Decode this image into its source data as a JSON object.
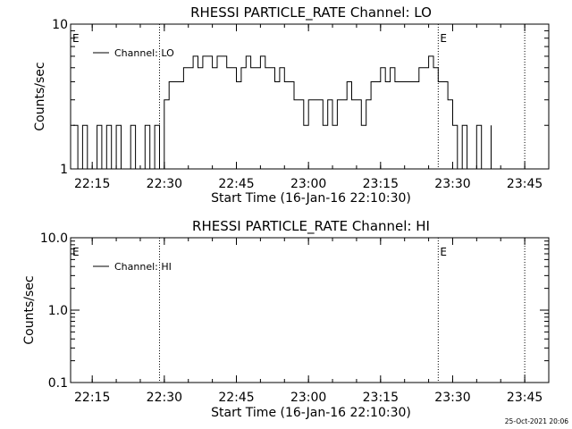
{
  "chart_data": [
    {
      "type": "line",
      "title": "RHESSI PARTICLE_RATE Channel: LO",
      "xlabel": "Start Time (16-Jan-16 22:10:30)",
      "ylabel": "Counts/sec",
      "y_scale": "log",
      "ylim": [
        1,
        10
      ],
      "xlim": [
        "22:10:30",
        "23:50"
      ],
      "x_ticks": [
        "22:15",
        "22:30",
        "22:45",
        "23:00",
        "23:15",
        "23:30",
        "23:45"
      ],
      "y_ticks": [
        "1",
        "10"
      ],
      "event_lines": [
        "22:29",
        "23:27",
        "23:45"
      ],
      "event_markers": [
        {
          "label": "E"
        },
        {
          "label": "E"
        }
      ],
      "legend": {
        "placement": "top-left",
        "entries": [
          "Channel: LO"
        ]
      },
      "series": [
        {
          "name": "Channel: LO",
          "x": [
            "22:11",
            "22:12",
            "22:13",
            "22:14",
            "22:15",
            "22:16",
            "22:17",
            "22:18",
            "22:19",
            "22:20",
            "22:21",
            "22:22",
            "22:23",
            "22:24",
            "22:25",
            "22:26",
            "22:27",
            "22:28",
            "22:29",
            "22:30",
            "22:31",
            "22:32",
            "22:33",
            "22:34",
            "22:35",
            "22:36",
            "22:37",
            "22:38",
            "22:39",
            "22:40",
            "22:41",
            "22:42",
            "22:43",
            "22:44",
            "22:45",
            "22:46",
            "22:47",
            "22:48",
            "22:49",
            "22:50",
            "22:51",
            "22:52",
            "22:53",
            "22:54",
            "22:55",
            "22:56",
            "22:57",
            "22:58",
            "22:59",
            "23:00",
            "23:01",
            "23:02",
            "23:03",
            "23:04",
            "23:05",
            "23:06",
            "23:07",
            "23:08",
            "23:09",
            "23:10",
            "23:11",
            "23:12",
            "23:13",
            "23:14",
            "23:15",
            "23:16",
            "23:17",
            "23:18",
            "23:19",
            "23:20",
            "23:21",
            "23:22",
            "23:23",
            "23:24",
            "23:25",
            "23:26",
            "23:27",
            "23:28",
            "23:29",
            "23:30",
            "23:31",
            "23:32",
            "23:33",
            "23:34",
            "23:35",
            "23:36",
            "23:37",
            "23:38"
          ],
          "values": [
            2,
            1,
            2,
            1,
            1,
            2,
            1,
            2,
            1,
            2,
            1,
            1,
            2,
            1,
            1,
            2,
            1,
            2,
            1,
            3,
            4,
            4,
            4,
            5,
            5,
            6,
            5,
            6,
            6,
            5,
            6,
            6,
            5,
            5,
            4,
            5,
            6,
            5,
            5,
            6,
            5,
            5,
            4,
            5,
            4,
            4,
            3,
            3,
            2,
            3,
            3,
            3,
            2,
            3,
            2,
            3,
            3,
            4,
            3,
            3,
            2,
            3,
            4,
            4,
            5,
            4,
            5,
            4,
            4,
            4,
            4,
            4,
            5,
            5,
            6,
            5,
            4,
            4,
            3,
            2,
            1,
            2,
            1,
            1,
            2,
            1,
            1,
            2
          ]
        }
      ]
    },
    {
      "type": "line",
      "title": "RHESSI PARTICLE_RATE Channel: HI",
      "xlabel": "Start Time (16-Jan-16 22:10:30)",
      "ylabel": "Counts/sec",
      "y_scale": "log",
      "ylim": [
        0.1,
        10
      ],
      "xlim": [
        "22:10:30",
        "23:50"
      ],
      "x_ticks": [
        "22:15",
        "22:30",
        "22:45",
        "23:00",
        "23:15",
        "23:30",
        "23:45"
      ],
      "y_ticks": [
        "0.1",
        "1.0",
        "10.0"
      ],
      "event_lines": [
        "22:29",
        "23:27",
        "23:45"
      ],
      "event_markers": [
        {
          "label": "E"
        },
        {
          "label": "E"
        }
      ],
      "legend": {
        "placement": "top-left",
        "entries": [
          "Channel: HI"
        ]
      },
      "series": [
        {
          "name": "Channel: HI",
          "x": [],
          "values": []
        }
      ]
    }
  ],
  "footer": {
    "timestamp": "25-Oct-2021 20:06"
  },
  "colors": {
    "background": "#ffffff",
    "ink": "#000000"
  }
}
